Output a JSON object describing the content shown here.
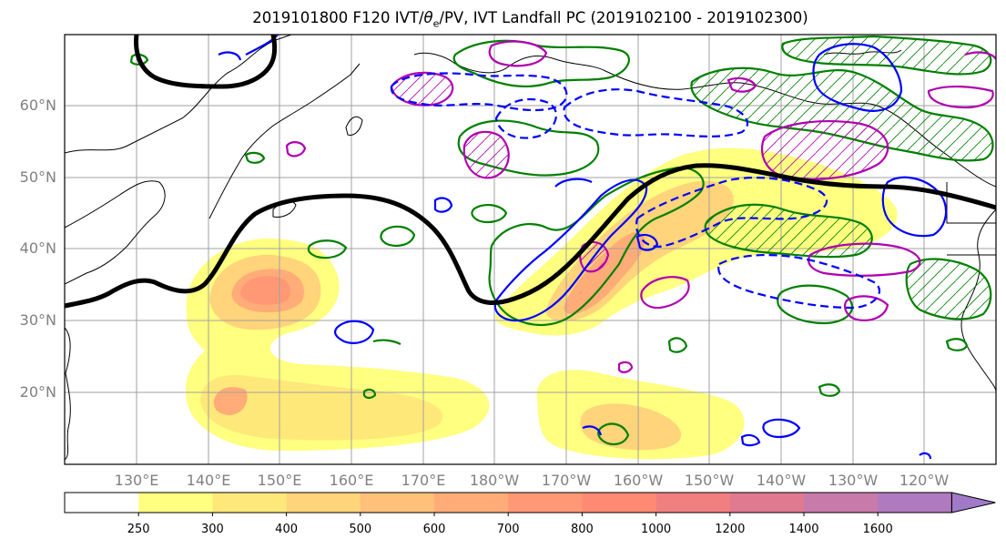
{
  "title": {
    "prefix": "2019101800 F120 IVT/",
    "theta": "θ",
    "sub": "e",
    "suffix": "/PV, IVT Landfall PC (2019102100 - 2019102300)"
  },
  "lat_labels": [
    "60°N",
    "50°N",
    "40°N",
    "30°N",
    "20°N"
  ],
  "lon_labels": [
    "130°E",
    "140°E",
    "150°E",
    "160°E",
    "170°E",
    "180°W",
    "170°W",
    "160°W",
    "150°W",
    "140°W",
    "130°W",
    "120°W"
  ],
  "colorbar": {
    "levels": [
      "250",
      "300",
      "400",
      "500",
      "600",
      "700",
      "800",
      "1000",
      "1200",
      "1400",
      "1600"
    ],
    "colors": [
      "#ffff80",
      "#ffe87a",
      "#ffd47a",
      "#ffc07a",
      "#ffac78",
      "#ff9874",
      "#ff8a74",
      "#f27f80",
      "#df7a90",
      "#c87aaa",
      "#b07ac0",
      "#a07ac8"
    ]
  },
  "colors": {
    "jet": "#000000",
    "pv_positive": "#0000ff",
    "theta_e": "#008000",
    "pc": "#b000b0",
    "coast": "#000000",
    "grid": "#a0a0a0"
  }
}
